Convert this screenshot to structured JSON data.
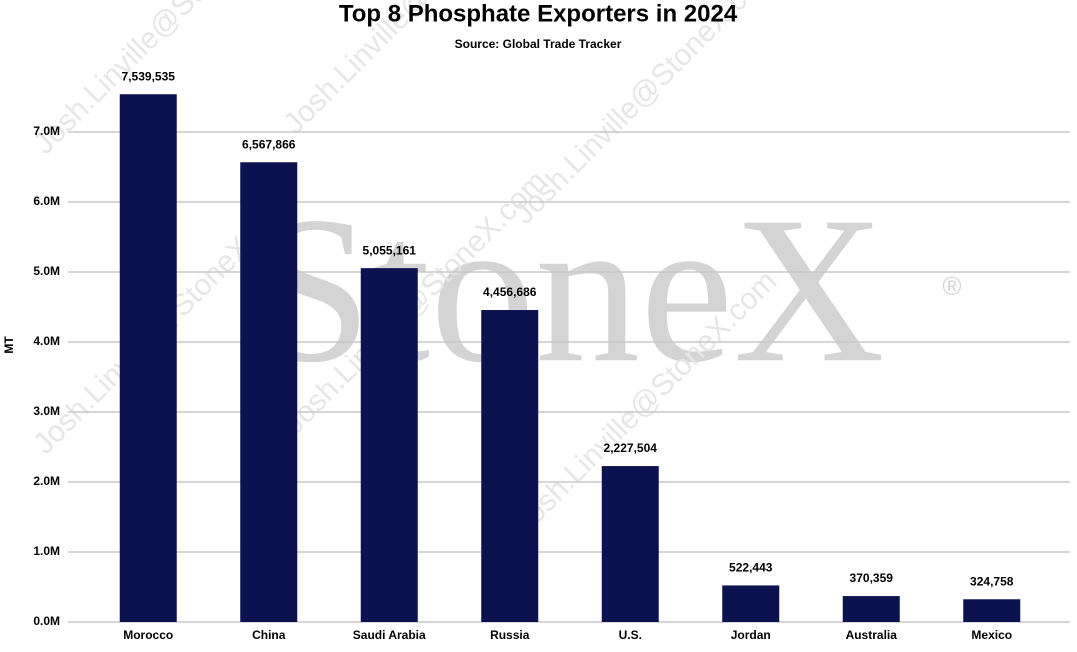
{
  "chart_data": {
    "type": "bar",
    "title": "Top 8 Phosphate Exporters in 2024",
    "subtitle": "Source: Global Trade Tracker",
    "y_label": "MT",
    "watermark": "StoneX",
    "watermark_mark": "®",
    "watermark_email": "Josh.Linville@StoneX.com",
    "categories": [
      "Morocco",
      "China",
      "Saudi Arabia",
      "Russia",
      "U.S.",
      "Jordan",
      "Australia",
      "Mexico"
    ],
    "values": [
      7539535,
      6567866,
      5055161,
      4456686,
      2227504,
      522443,
      370359,
      324758
    ],
    "value_labels": [
      "7,539,535",
      "6,567,866",
      "5,055,161",
      "4,456,686",
      "2,227,504",
      "522,443",
      "370,359",
      "324,758"
    ],
    "color": "#0c1250",
    "ylim": [
      0,
      8000000
    ],
    "yticks": [
      {
        "value": 0,
        "label": "0.0M"
      },
      {
        "value": 1000000,
        "label": "1.0M"
      },
      {
        "value": 2000000,
        "label": "2.0M"
      },
      {
        "value": 3000000,
        "label": "3.0M"
      },
      {
        "value": 4000000,
        "label": "4.0M"
      },
      {
        "value": 5000000,
        "label": "5.0M"
      },
      {
        "value": 6000000,
        "label": "6.0M"
      },
      {
        "value": 7000000,
        "label": "7.0M"
      }
    ],
    "grid": true
  }
}
